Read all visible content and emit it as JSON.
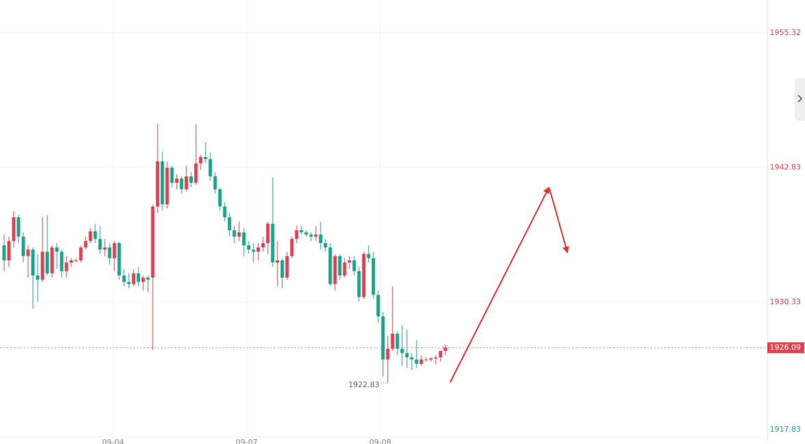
{
  "chart_data": {
    "type": "candlestick",
    "ylim": [
      1917.41,
      1958.37
    ],
    "yticks": [
      1955.32,
      1942.83,
      1930.33,
      1917.83
    ],
    "xticks": [
      "09-04",
      "09-07",
      "09-08"
    ],
    "up_color": "#e0434f",
    "down_color": "#1ba58c",
    "grid": true,
    "candles": [
      [
        1935.6,
        1936.6,
        1933.2,
        1934.2
      ],
      [
        1934.2,
        1936.4,
        1933.6,
        1936.0
      ],
      [
        1936.0,
        1938.8,
        1935.4,
        1938.2
      ],
      [
        1938.2,
        1938.4,
        1935.8,
        1936.4
      ],
      [
        1936.4,
        1936.8,
        1934.0,
        1934.6
      ],
      [
        1934.6,
        1935.6,
        1932.6,
        1935.2
      ],
      [
        1935.2,
        1935.4,
        1929.7,
        1932.8
      ],
      [
        1932.8,
        1934.8,
        1930.4,
        1932.4
      ],
      [
        1932.4,
        1938.2,
        1932.2,
        1935.0
      ],
      [
        1935.0,
        1938.4,
        1932.8,
        1933.0
      ],
      [
        1933.0,
        1935.6,
        1932.6,
        1935.4
      ],
      [
        1935.4,
        1935.8,
        1933.4,
        1935.0
      ],
      [
        1935.0,
        1935.2,
        1932.6,
        1933.2
      ],
      [
        1933.2,
        1934.6,
        1932.6,
        1934.0
      ],
      [
        1934.0,
        1934.4,
        1933.6,
        1934.2
      ],
      [
        1934.2,
        1934.4,
        1934.0,
        1934.2
      ],
      [
        1934.2,
        1935.6,
        1934.0,
        1935.4
      ],
      [
        1935.4,
        1936.4,
        1935.2,
        1936.0
      ],
      [
        1936.0,
        1937.2,
        1935.8,
        1936.9
      ],
      [
        1936.9,
        1937.6,
        1935.8,
        1936.2
      ],
      [
        1936.2,
        1937.4,
        1934.8,
        1935.2
      ],
      [
        1935.2,
        1936.2,
        1934.6,
        1935.4
      ],
      [
        1935.4,
        1935.8,
        1933.8,
        1934.4
      ],
      [
        1934.4,
        1936.0,
        1933.2,
        1935.8
      ],
      [
        1935.8,
        1935.9,
        1932.4,
        1932.8
      ],
      [
        1932.8,
        1933.4,
        1931.8,
        1932.2
      ],
      [
        1932.2,
        1933.0,
        1931.6,
        1932.0
      ],
      [
        1932.0,
        1933.4,
        1931.8,
        1933.0
      ],
      [
        1933.0,
        1933.6,
        1931.8,
        1932.2
      ],
      [
        1932.2,
        1932.8,
        1931.4,
        1932.6
      ],
      [
        1932.6,
        1932.8,
        1931.2,
        1932.4
      ],
      [
        1932.6,
        1939.4,
        1925.9,
        1939.2
      ],
      [
        1939.2,
        1946.9,
        1938.6,
        1943.4
      ],
      [
        1943.4,
        1944.3,
        1938.8,
        1939.4
      ],
      [
        1939.4,
        1943.4,
        1939.0,
        1942.8
      ],
      [
        1942.8,
        1943.0,
        1941.0,
        1941.4
      ],
      [
        1941.4,
        1942.2,
        1940.8,
        1941.8
      ],
      [
        1941.8,
        1942.0,
        1940.4,
        1940.8
      ],
      [
        1940.8,
        1943.0,
        1940.6,
        1942.0
      ],
      [
        1942.0,
        1942.4,
        1941.0,
        1941.4
      ],
      [
        1941.4,
        1946.8,
        1941.2,
        1943.2
      ],
      [
        1943.2,
        1944.0,
        1942.6,
        1943.8
      ],
      [
        1943.8,
        1945.2,
        1943.2,
        1943.6
      ],
      [
        1943.6,
        1944.2,
        1941.6,
        1942.0
      ],
      [
        1942.0,
        1942.4,
        1940.4,
        1940.8
      ],
      [
        1940.8,
        1941.0,
        1938.8,
        1939.2
      ],
      [
        1939.2,
        1939.6,
        1937.8,
        1938.2
      ],
      [
        1938.2,
        1938.6,
        1936.4,
        1937.0
      ],
      [
        1937.0,
        1937.4,
        1935.8,
        1936.4
      ],
      [
        1936.4,
        1937.8,
        1936.0,
        1936.8
      ],
      [
        1936.8,
        1937.2,
        1934.6,
        1935.6
      ],
      [
        1935.6,
        1936.0,
        1934.8,
        1935.2
      ],
      [
        1935.2,
        1935.8,
        1934.0,
        1935.0
      ],
      [
        1935.0,
        1935.8,
        1934.2,
        1935.4
      ],
      [
        1935.4,
        1936.4,
        1935.0,
        1935.8
      ],
      [
        1935.8,
        1937.8,
        1934.8,
        1937.6
      ],
      [
        1937.6,
        1941.9,
        1933.6,
        1934.0
      ],
      [
        1934.0,
        1936.0,
        1931.8,
        1934.2
      ],
      [
        1934.2,
        1934.4,
        1931.6,
        1932.6
      ],
      [
        1932.6,
        1935.0,
        1932.4,
        1934.6
      ],
      [
        1934.6,
        1936.4,
        1934.4,
        1936.2
      ],
      [
        1936.2,
        1937.4,
        1935.8,
        1937.0
      ],
      [
        1937.0,
        1937.4,
        1936.6,
        1936.8
      ],
      [
        1936.8,
        1937.0,
        1936.4,
        1936.6
      ],
      [
        1936.6,
        1936.8,
        1936.0,
        1936.4
      ],
      [
        1936.4,
        1937.4,
        1936.0,
        1936.6
      ],
      [
        1936.6,
        1937.8,
        1935.2,
        1935.8
      ],
      [
        1935.8,
        1936.2,
        1935.0,
        1935.4
      ],
      [
        1935.4,
        1935.8,
        1931.8,
        1932.0
      ],
      [
        1932.0,
        1934.8,
        1931.4,
        1934.6
      ],
      [
        1934.6,
        1934.8,
        1932.4,
        1932.8
      ],
      [
        1932.8,
        1934.4,
        1932.6,
        1934.0
      ],
      [
        1934.0,
        1934.6,
        1933.4,
        1934.2
      ],
      [
        1934.2,
        1934.6,
        1932.8,
        1933.2
      ],
      [
        1933.2,
        1933.6,
        1930.4,
        1930.8
      ],
      [
        1930.8,
        1935.0,
        1930.6,
        1934.8
      ],
      [
        1934.8,
        1935.6,
        1934.0,
        1934.4
      ],
      [
        1934.4,
        1935.0,
        1930.6,
        1931.0
      ],
      [
        1931.0,
        1931.4,
        1928.4,
        1929.0
      ],
      [
        1929.0,
        1929.4,
        1923.4,
        1925.0
      ],
      [
        1925.0,
        1927.2,
        1922.83,
        1926.0
      ],
      [
        1926.0,
        1931.8,
        1925.8,
        1927.4
      ],
      [
        1927.4,
        1927.6,
        1925.4,
        1926.0
      ],
      [
        1926.0,
        1928.2,
        1924.4,
        1925.6
      ],
      [
        1925.6,
        1927.8,
        1924.2,
        1925.2
      ],
      [
        1925.2,
        1925.6,
        1924.0,
        1925.0
      ],
      [
        1925.0,
        1926.8,
        1924.2,
        1924.6
      ],
      [
        1924.6,
        1925.4,
        1924.4,
        1925.0
      ],
      [
        1925.0,
        1925.2,
        1924.8,
        1925.0
      ],
      [
        1925.0,
        1925.2,
        1924.8,
        1925.1
      ],
      [
        1925.1,
        1925.4,
        1924.6,
        1925.2
      ],
      [
        1925.2,
        1925.6,
        1924.8,
        1925.8
      ],
      [
        1925.8,
        1926.3,
        1925.4,
        1926.09
      ]
    ]
  }
}
